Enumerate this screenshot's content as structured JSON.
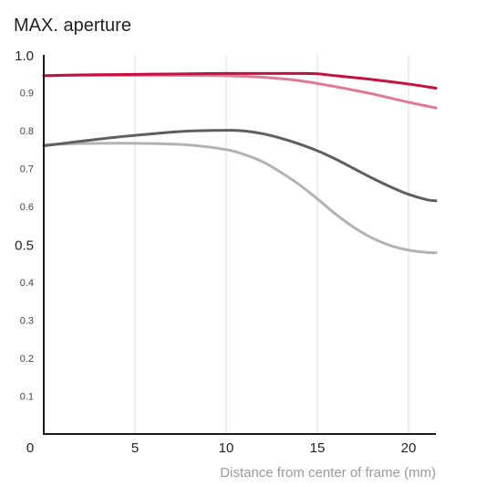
{
  "chart_data": {
    "type": "line",
    "title": "MAX. aperture",
    "xlabel": "Distance from center of frame (mm)",
    "ylabel": "",
    "xlim": [
      0,
      21.5
    ],
    "ylim": [
      0,
      1.0
    ],
    "grid": true,
    "x_ticks": [
      {
        "value": 0,
        "label": "0"
      },
      {
        "value": 5,
        "label": "5"
      },
      {
        "value": 10,
        "label": "10"
      },
      {
        "value": 15,
        "label": "15"
      },
      {
        "value": 20,
        "label": "20"
      }
    ],
    "y_ticks": [
      {
        "value": 0.1,
        "label": "0.1",
        "major": false
      },
      {
        "value": 0.2,
        "label": "0.2",
        "major": false
      },
      {
        "value": 0.3,
        "label": "0.3",
        "major": false
      },
      {
        "value": 0.4,
        "label": "0.4",
        "major": false
      },
      {
        "value": 0.5,
        "label": "0.5",
        "major": true
      },
      {
        "value": 0.6,
        "label": "0.6",
        "major": false
      },
      {
        "value": 0.7,
        "label": "0.7",
        "major": false
      },
      {
        "value": 0.8,
        "label": "0.8",
        "major": false
      },
      {
        "value": 0.9,
        "label": "0.9",
        "major": false
      },
      {
        "value": 1.0,
        "label": "1.0",
        "major": true
      }
    ],
    "series": [
      {
        "color": "#c8103e",
        "x": [
          0,
          2,
          4,
          6,
          8,
          10,
          12,
          14,
          15,
          16,
          18,
          20,
          21.5
        ],
        "y": [
          0.945,
          0.947,
          0.948,
          0.949,
          0.95,
          0.951,
          0.951,
          0.951,
          0.95,
          0.945,
          0.935,
          0.923,
          0.912
        ]
      },
      {
        "color": "#e07a96",
        "x": [
          0,
          2,
          4,
          6,
          8,
          10,
          12,
          14,
          16,
          18,
          20,
          21.5
        ],
        "y": [
          0.945,
          0.946,
          0.946,
          0.946,
          0.946,
          0.945,
          0.941,
          0.932,
          0.916,
          0.897,
          0.875,
          0.86
        ]
      },
      {
        "color": "#5f5f5f",
        "x": [
          0,
          2,
          4,
          6,
          8,
          10,
          11,
          12,
          13,
          14,
          15,
          16,
          17,
          18,
          19,
          20,
          21,
          21.5
        ],
        "y": [
          0.76,
          0.772,
          0.783,
          0.792,
          0.799,
          0.801,
          0.799,
          0.792,
          0.78,
          0.765,
          0.747,
          0.725,
          0.7,
          0.675,
          0.652,
          0.632,
          0.618,
          0.615
        ]
      },
      {
        "color": "#b3b3b3",
        "x": [
          0,
          2,
          4,
          6,
          8,
          10,
          11,
          12,
          13,
          14,
          15,
          16,
          17,
          18,
          19,
          20,
          21,
          21.5
        ],
        "y": [
          0.763,
          0.766,
          0.767,
          0.766,
          0.762,
          0.75,
          0.737,
          0.718,
          0.69,
          0.658,
          0.62,
          0.58,
          0.545,
          0.517,
          0.497,
          0.485,
          0.479,
          0.478
        ]
      }
    ]
  }
}
